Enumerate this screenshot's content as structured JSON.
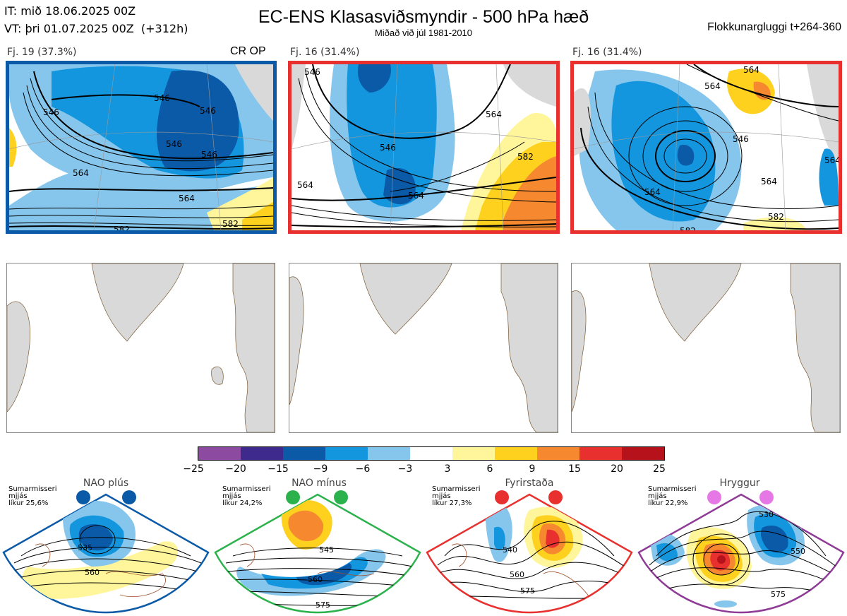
{
  "header": {
    "it_line": "IT: mið 18.06.2025 00Z",
    "vt_line": "VT: þri 01.07.2025 00Z  (+312h)",
    "title": "EC-ENS Klasasviðsmyndir - 500 hPa hæð",
    "subtitle": "Miðað við júl 1981-2010",
    "window": "Flokkunargluggi t+264-360"
  },
  "clusters": [
    {
      "label": "Fj. 19 (37.3%)",
      "tag": "CR OP",
      "border_color": "#0a5aa8",
      "contour_labels": [
        "546",
        "546",
        "546",
        "546",
        "564",
        "564",
        "582",
        "582",
        "546"
      ]
    },
    {
      "label": "Fj. 16 (31.4%)",
      "tag": "",
      "border_color": "#e8302e",
      "contour_labels": [
        "546",
        "546",
        "564",
        "582",
        "564",
        "564",
        "582"
      ]
    },
    {
      "label": "Fj. 16 (31.4%)",
      "tag": "",
      "border_color": "#e8302e",
      "contour_labels": [
        "564",
        "564",
        "546",
        "564",
        "564",
        "582",
        "582",
        "564"
      ]
    }
  ],
  "colorbar": {
    "ticks": [
      "−25",
      "−20",
      "−15",
      "−9",
      "−6",
      "−3",
      "3",
      "6",
      "9",
      "15",
      "20",
      "25"
    ],
    "colors": [
      "#8c4aa0",
      "#3d2a8c",
      "#0a5aa8",
      "#1496de",
      "#86c6ec",
      "#ffffff",
      "#fff59a",
      "#fed11f",
      "#f6882f",
      "#e8302e",
      "#b5121b"
    ]
  },
  "regimes": [
    {
      "name": "NAO plús",
      "season": "Sumarmisseri",
      "basis": "mjjás",
      "prob": "líkur 25,6%",
      "color": "#0a5aa8",
      "labels": [
        "535",
        "560"
      ]
    },
    {
      "name": "NAO mínus",
      "season": "Sumarmisseri",
      "basis": "mjjás",
      "prob": "líkur 24,2%",
      "color": "#2bb24c",
      "labels": [
        "545",
        "560",
        "575"
      ]
    },
    {
      "name": "Fyrirstaða",
      "season": "Sumarmisseri",
      "basis": "mjjás",
      "prob": "líkur 27,3%",
      "color": "#e8302e",
      "labels": [
        "540",
        "560",
        "575"
      ]
    },
    {
      "name": "Hryggur",
      "season": "Sumarmisseri",
      "basis": "mjjás",
      "prob": "líkur 22,9%",
      "color": "#e678e6",
      "labels": [
        "530",
        "550",
        "575"
      ]
    }
  ]
}
